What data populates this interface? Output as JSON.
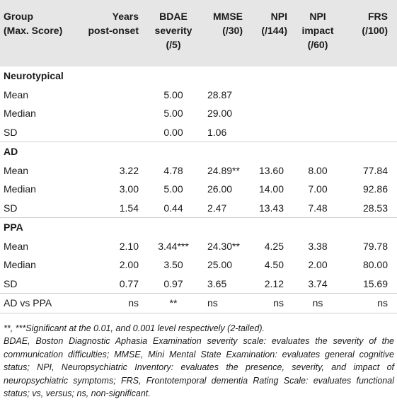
{
  "headers": [
    {
      "line1": "Group",
      "line2": "(Max. Score)",
      "line3": ""
    },
    {
      "line1": "Years",
      "line2": "post-onset",
      "line3": ""
    },
    {
      "line1": "BDAE",
      "line2": "severity",
      "line3": "(/5)"
    },
    {
      "line1": "MMSE",
      "line2": "(/30)",
      "line3": ""
    },
    {
      "line1": "NPI",
      "line2": "(/144)",
      "line3": ""
    },
    {
      "line1": "NPI",
      "line2": "impact",
      "line3": "(/60)"
    },
    {
      "line1": "FRS",
      "line2": "(/100)",
      "line3": ""
    }
  ],
  "groups": [
    {
      "name": "Neurotypical",
      "rows": [
        {
          "label": "Mean",
          "values": [
            "",
            "5.00",
            "28.87",
            "",
            "",
            ""
          ]
        },
        {
          "label": "Median",
          "values": [
            "",
            "5.00",
            "29.00",
            "",
            "",
            ""
          ]
        },
        {
          "label": "SD",
          "values": [
            "",
            "0.00",
            "1.06",
            "",
            "",
            ""
          ]
        }
      ]
    },
    {
      "name": "AD",
      "rows": [
        {
          "label": "Mean",
          "values": [
            "3.22",
            "4.78",
            "24.89**",
            "13.60",
            "8.00",
            "77.84"
          ]
        },
        {
          "label": "Median",
          "values": [
            "3.00",
            "5.00",
            "26.00",
            "14.00",
            "7.00",
            "92.86"
          ]
        },
        {
          "label": "SD",
          "values": [
            "1.54",
            "0.44",
            "2.47",
            "13.43",
            "7.48",
            "28.53"
          ]
        }
      ]
    },
    {
      "name": "PPA",
      "rows": [
        {
          "label": "Mean",
          "values": [
            "2.10",
            "3.44***",
            "24.30**",
            "4.25",
            "3.38",
            "79.78"
          ]
        },
        {
          "label": "Median",
          "values": [
            "2.00",
            "3.50",
            "25.00",
            "4.50",
            "2.00",
            "80.00"
          ]
        },
        {
          "label": "SD",
          "values": [
            "0.77",
            "0.97",
            "3.65",
            "2.12",
            "3.74",
            "15.69"
          ]
        }
      ]
    }
  ],
  "comparison": {
    "label": "AD vs PPA",
    "values": [
      "ns",
      "**",
      "ns",
      "ns",
      "ns",
      "ns"
    ]
  },
  "footnotes": {
    "significance": "**, ***Significant at the 0.01, and 0.001 level respectively (2-tailed).",
    "abbreviations": "BDAE, Boston Diagnostic Aphasia Examination severity scale: evaluates the severity of the communication difficulties; MMSE, Mini Mental State Examination: evaluates general cognitive status; NPI, Neuropsychiatric Inventory: evaluates the presence, severity, and impact of neuropsychiatric symptoms; FRS, Frontotemporal dementia Rating Scale: evaluates functional status; vs, versus; ns, non-significant."
  }
}
